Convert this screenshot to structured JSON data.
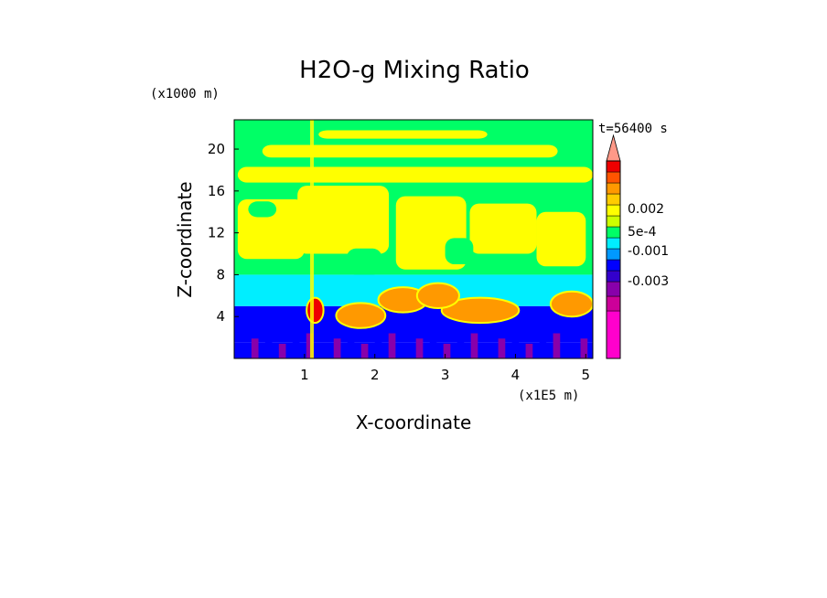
{
  "chart_data": {
    "type": "heatmap",
    "title": "H2O-g Mixing Ratio",
    "xlabel": "X-coordinate",
    "ylabel": "Z-coordinate",
    "x_unit": "(x1E5 m)",
    "y_unit": "(x1000 m)",
    "time_label": "t=56400 s",
    "x_ticks": [
      "1",
      "2",
      "3",
      "4",
      "5"
    ],
    "y_ticks": [
      "4",
      "8",
      "12",
      "16",
      "20"
    ],
    "xlim": [
      0,
      5.1
    ],
    "ylim": [
      0,
      22.8
    ],
    "colorbar": {
      "colors": [
        "#ff00cc",
        "#cc0099",
        "#8800aa",
        "#3300cc",
        "#0000ff",
        "#0099ff",
        "#00eeff",
        "#00ff66",
        "#ccff00",
        "#ffff00",
        "#ffcc00",
        "#ff9900",
        "#ff5500",
        "#ee0000",
        "#ff9988"
      ],
      "labels": [
        "0.002",
        "5e-4",
        "-0.001",
        "-0.003"
      ],
      "extend": "max"
    },
    "bands": [
      {
        "z": [
          0,
          1.5
        ],
        "level": 4,
        "features": "purple"
      },
      {
        "z": [
          1.5,
          5
        ],
        "level": 4,
        "features": "orange"
      },
      {
        "z": [
          5,
          8
        ],
        "level": 6
      },
      {
        "z": [
          8,
          23
        ],
        "level": 7,
        "features": "yellow"
      }
    ]
  }
}
